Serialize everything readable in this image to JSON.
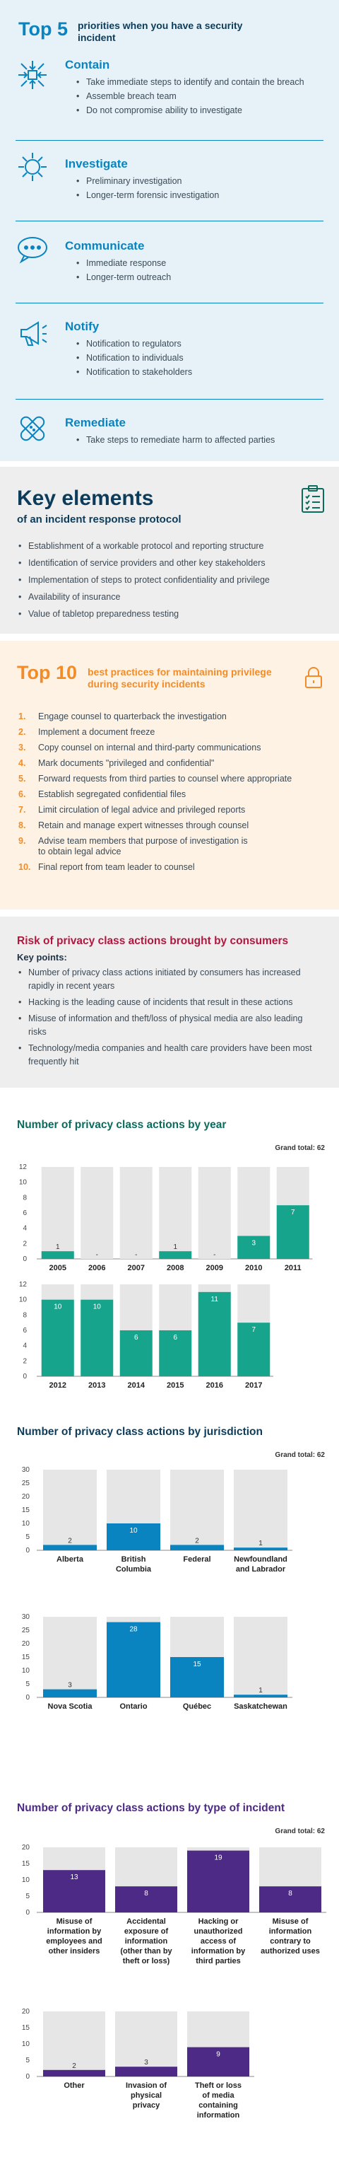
{
  "top5": {
    "heading_big": "Top 5",
    "heading_small": "priorities when you have a security incident",
    "items": [
      {
        "icon": "contain-arrows-icon",
        "title": "Contain",
        "bullets": [
          "Take immediate steps to identify and contain the breach",
          "Assemble breach team",
          "Do not compromise ability to investigate"
        ]
      },
      {
        "icon": "investigate-magnifier-icon",
        "title": "Investigate",
        "bullets": [
          "Preliminary investigation",
          "Longer-term forensic investigation"
        ]
      },
      {
        "icon": "speech-bubble-icon",
        "title": "Communicate",
        "bullets": [
          "Immediate response",
          "Longer-term outreach"
        ]
      },
      {
        "icon": "megaphone-icon",
        "title": "Notify",
        "bullets": [
          "Notification to regulators",
          "Notification to individuals",
          "Notification to stakeholders"
        ]
      },
      {
        "icon": "bandage-icon",
        "title": "Remediate",
        "bullets": [
          "Take steps to remediate harm to affected parties"
        ]
      }
    ]
  },
  "key_elements": {
    "title": "Key elements",
    "subtitle": "of an incident response protocol",
    "icon": "clipboard-checklist-icon",
    "bullets": [
      "Establishment of a workable protocol and reporting structure",
      "Identification of service providers and other key stakeholders",
      "Implementation of steps to protect confidentiality and privilege",
      "Availability of insurance",
      "Value of tabletop preparedness testing"
    ]
  },
  "top10": {
    "heading_big": "Top 10",
    "heading_small": "best practices for maintaining privilege during security incidents",
    "icon": "padlock-icon",
    "items": [
      {
        "n": "1.",
        "text": "Engage counsel to quarterback the investigation"
      },
      {
        "n": "2.",
        "text": "Implement a document freeze"
      },
      {
        "n": "3.",
        "text": "Copy counsel on internal and third-party communications"
      },
      {
        "n": "4.",
        "text": "Mark documents \"privileged and confidential\""
      },
      {
        "n": "5.",
        "text": "Forward requests from third parties to counsel where appropriate"
      },
      {
        "n": "6.",
        "text": "Establish segregated confidential files"
      },
      {
        "n": "7.",
        "text": "Limit circulation of legal advice and privileged reports"
      },
      {
        "n": "8.",
        "text": "Retain and manage expert witnesses through counsel"
      },
      {
        "n": "9.",
        "text": "Advise team members that purpose of investigation is to obtain legal advice"
      },
      {
        "n": "10.",
        "text": "Final report from team leader to counsel"
      }
    ]
  },
  "risk": {
    "title": "Risk of privacy class actions brought by consumers",
    "key_points_label": "Key points:",
    "bullets": [
      "Number of privacy class actions initiated by consumers has increased rapidly in recent years",
      "Hacking is the leading cause of incidents that result in these actions",
      "Misuse of information and theft/loss of physical media are also leading risks",
      "Technology/media companies and health care providers have been most frequently hit"
    ]
  },
  "colors": {
    "teal": "#16a58c",
    "blue": "#0a84c0",
    "purple": "#4c2a85",
    "orange": "#f28c28",
    "navy": "#0d3c5a",
    "crimson": "#b3163e"
  },
  "chart_data": [
    {
      "type": "bar",
      "title": "Number of privacy class actions by year",
      "grand_total": "Grand total: 62",
      "categories": [
        "2005",
        "2006",
        "2007",
        "2008",
        "2009",
        "2010",
        "2011",
        "2012",
        "2013",
        "2014",
        "2015",
        "2016",
        "2017"
      ],
      "values": [
        1,
        0,
        0,
        1,
        0,
        3,
        7,
        10,
        10,
        6,
        6,
        11,
        7
      ],
      "labels": [
        "1",
        "-",
        "-",
        "1",
        "-",
        "3",
        "7",
        "10",
        "10",
        "6",
        "6",
        "11",
        "7"
      ],
      "yticks": [
        0,
        2,
        4,
        6,
        8,
        10,
        12
      ],
      "ylim": [
        0,
        12
      ],
      "color": "#16a58c"
    },
    {
      "type": "bar",
      "title": "Number of privacy class actions by jurisdiction",
      "grand_total": "Grand total: 62",
      "categories": [
        "Alberta",
        "British Columbia",
        "Federal",
        "Newfoundland and Labrador",
        "Nova Scotia",
        "Ontario",
        "Québec",
        "Saskatchewan"
      ],
      "values": [
        2,
        10,
        2,
        1,
        3,
        28,
        15,
        1
      ],
      "yticks": [
        0,
        5,
        10,
        15,
        20,
        25,
        30
      ],
      "ylim": [
        0,
        30
      ],
      "color": "#0a84c0"
    },
    {
      "type": "bar",
      "title": "Number of privacy class actions by type of incident",
      "grand_total": "Grand total: 62",
      "categories": [
        "Misuse of information by employees and other insiders",
        "Accidental exposure of information (other than by theft or loss)",
        "Hacking or unauthorized access of information by third parties",
        "Misuse of information contrary to authorized uses",
        "Other",
        "Invasion of physical privacy",
        "Theft or loss of media containing information"
      ],
      "values": [
        13,
        8,
        19,
        8,
        2,
        3,
        9
      ],
      "yticks": [
        0,
        5,
        10,
        15,
        20
      ],
      "ylim": [
        0,
        20
      ],
      "color": "#4c2a85"
    }
  ]
}
